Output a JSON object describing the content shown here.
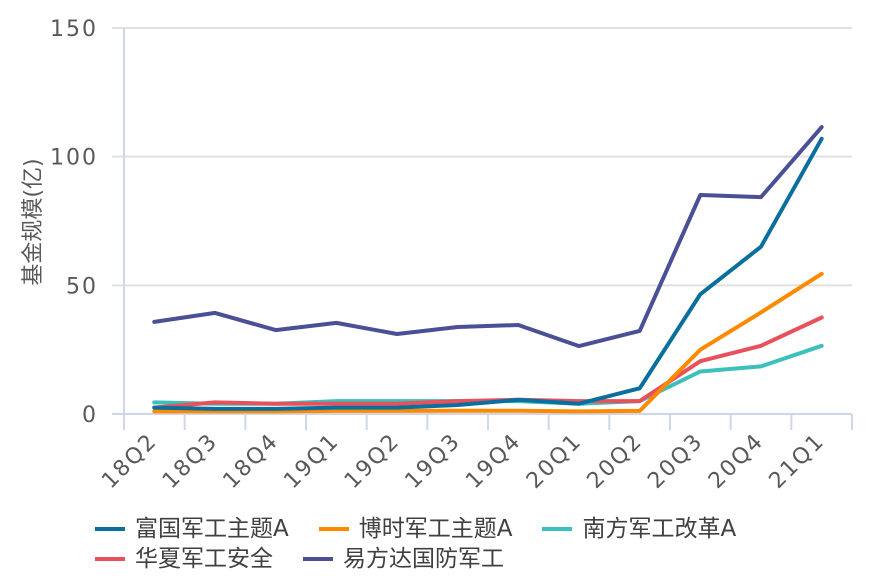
{
  "chart_data": {
    "type": "line",
    "title": "",
    "xlabel": "",
    "ylabel": "基金规模(亿)",
    "ylim": [
      0,
      150
    ],
    "yticks": [
      0,
      50,
      100,
      150
    ],
    "grid": true,
    "legend_position": "bottom",
    "categories": [
      "18Q2",
      "18Q3",
      "18Q4",
      "19Q1",
      "19Q2",
      "19Q3",
      "19Q4",
      "20Q1",
      "20Q2",
      "20Q3",
      "20Q4",
      "21Q1"
    ],
    "series": [
      {
        "name": "富国军工主题A",
        "color": "#0a6f9e",
        "values": [
          2.5,
          2.0,
          2.0,
          2.5,
          2.5,
          3.5,
          5.5,
          4.0,
          10.0,
          46.5,
          65.0,
          107.0
        ]
      },
      {
        "name": "博时军工主题A",
        "color": "#ff8a00",
        "values": [
          1.0,
          1.0,
          1.0,
          1.2,
          1.2,
          1.3,
          1.3,
          1.0,
          1.2,
          25.0,
          39.5,
          54.5
        ]
      },
      {
        "name": "南方军工改革A",
        "color": "#3dbfbc",
        "values": [
          4.5,
          4.0,
          4.0,
          5.0,
          5.0,
          5.0,
          5.0,
          4.0,
          5.0,
          16.5,
          18.5,
          26.5
        ]
      },
      {
        "name": "华夏军工安全",
        "color": "#e8505b",
        "values": [
          2.5,
          4.5,
          4.0,
          4.0,
          4.0,
          5.0,
          5.5,
          5.0,
          5.0,
          20.5,
          26.5,
          37.5
        ]
      },
      {
        "name": "易方达国防军工",
        "color": "#4b4f96",
        "values": [
          35.8,
          39.3,
          32.6,
          35.4,
          31.1,
          33.8,
          34.6,
          26.4,
          32.3,
          85.1,
          84.3,
          111.5
        ]
      }
    ]
  },
  "axis": {
    "y_tick_labels": [
      "0",
      "50",
      "100",
      "150"
    ],
    "ylabel": "基金规模(亿)"
  },
  "colors": {
    "grid": "#e0e0e0",
    "axis": "#cdd6ea",
    "text": "#595959"
  }
}
